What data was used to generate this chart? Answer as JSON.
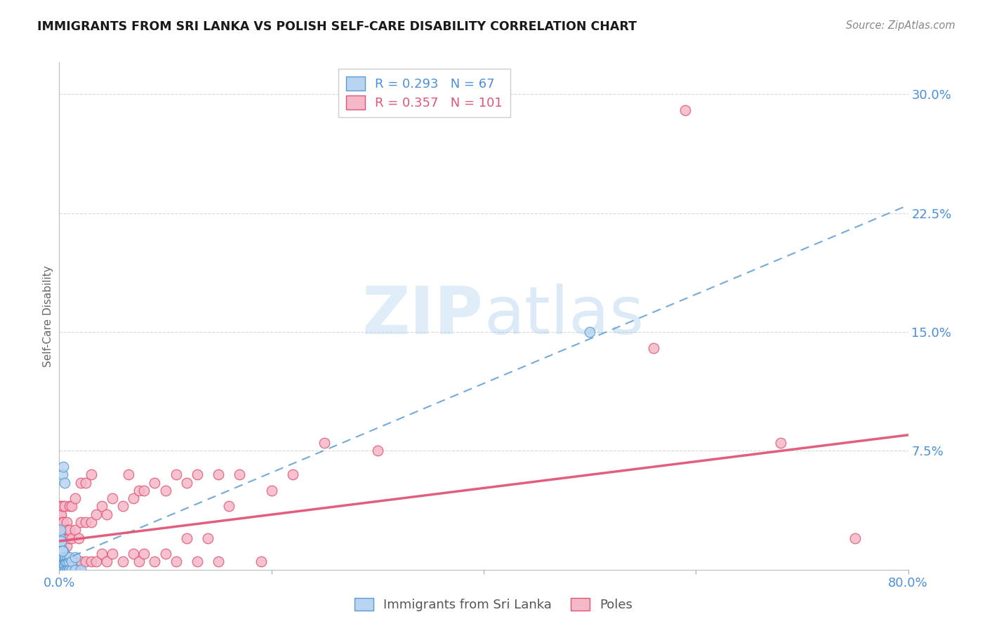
{
  "title": "IMMIGRANTS FROM SRI LANKA VS POLISH SELF-CARE DISABILITY CORRELATION CHART",
  "source": "Source: ZipAtlas.com",
  "ylabel": "Self-Care Disability",
  "xlim": [
    0.0,
    0.8
  ],
  "ylim": [
    0.0,
    0.32
  ],
  "background_color": "#ffffff",
  "grid_color": "#d8d8d8",
  "sri_lanka_color": "#b8d4f0",
  "sri_lanka_edge_color": "#5b9bd5",
  "poles_color": "#f5b8c8",
  "poles_edge_color": "#e05575",
  "R_sri_lanka": 0.293,
  "N_sri_lanka": 67,
  "R_poles": 0.357,
  "N_poles": 101,
  "watermark_zip": "ZIP",
  "watermark_atlas": "atlas",
  "sri_lanka_points": [
    [
      0.0,
      0.0
    ],
    [
      0.0,
      0.002
    ],
    [
      0.0,
      0.004
    ],
    [
      0.0,
      0.005
    ],
    [
      0.0,
      0.007
    ],
    [
      0.0,
      0.01
    ],
    [
      0.0,
      0.012
    ],
    [
      0.0,
      0.0
    ],
    [
      0.001,
      0.0
    ],
    [
      0.001,
      0.003
    ],
    [
      0.001,
      0.005
    ],
    [
      0.001,
      0.007
    ],
    [
      0.001,
      0.01
    ],
    [
      0.001,
      0.012
    ],
    [
      0.001,
      0.015
    ],
    [
      0.001,
      0.018
    ],
    [
      0.001,
      0.0
    ],
    [
      0.001,
      0.005
    ],
    [
      0.001,
      0.008
    ],
    [
      0.001,
      0.01
    ],
    [
      0.002,
      0.0
    ],
    [
      0.002,
      0.003
    ],
    [
      0.002,
      0.005
    ],
    [
      0.002,
      0.008
    ],
    [
      0.002,
      0.01
    ],
    [
      0.002,
      0.0
    ],
    [
      0.002,
      0.005
    ],
    [
      0.002,
      0.003
    ],
    [
      0.002,
      0.012
    ],
    [
      0.003,
      0.0
    ],
    [
      0.003,
      0.005
    ],
    [
      0.003,
      0.008
    ],
    [
      0.003,
      0.0
    ],
    [
      0.003,
      0.003
    ],
    [
      0.004,
      0.0
    ],
    [
      0.004,
      0.005
    ],
    [
      0.004,
      0.008
    ],
    [
      0.004,
      0.012
    ],
    [
      0.004,
      0.0
    ],
    [
      0.005,
      0.005
    ],
    [
      0.005,
      0.0
    ],
    [
      0.005,
      0.008
    ],
    [
      0.005,
      0.003
    ],
    [
      0.006,
      0.0
    ],
    [
      0.006,
      0.005
    ],
    [
      0.006,
      0.008
    ],
    [
      0.007,
      0.0
    ],
    [
      0.007,
      0.005
    ],
    [
      0.008,
      0.0
    ],
    [
      0.008,
      0.008
    ],
    [
      0.009,
      0.0
    ],
    [
      0.009,
      0.005
    ],
    [
      0.01,
      0.0
    ],
    [
      0.01,
      0.008
    ],
    [
      0.012,
      0.0
    ],
    [
      0.012,
      0.005
    ],
    [
      0.015,
      0.0
    ],
    [
      0.015,
      0.008
    ],
    [
      0.02,
      0.0
    ],
    [
      0.003,
      0.06
    ],
    [
      0.004,
      0.065
    ],
    [
      0.005,
      0.055
    ],
    [
      0.5,
      0.15
    ],
    [
      0.001,
      0.02
    ],
    [
      0.002,
      0.018
    ],
    [
      0.003,
      0.012
    ],
    [
      0.001,
      0.025
    ]
  ],
  "poles_points": [
    [
      0.001,
      0.0
    ],
    [
      0.001,
      0.005
    ],
    [
      0.001,
      0.01
    ],
    [
      0.001,
      0.015
    ],
    [
      0.001,
      0.02
    ],
    [
      0.001,
      0.025
    ],
    [
      0.001,
      0.03
    ],
    [
      0.001,
      0.035
    ],
    [
      0.001,
      0.04
    ],
    [
      0.002,
      0.0
    ],
    [
      0.002,
      0.005
    ],
    [
      0.002,
      0.01
    ],
    [
      0.002,
      0.015
    ],
    [
      0.002,
      0.02
    ],
    [
      0.002,
      0.025
    ],
    [
      0.002,
      0.03
    ],
    [
      0.002,
      0.035
    ],
    [
      0.003,
      0.0
    ],
    [
      0.003,
      0.005
    ],
    [
      0.003,
      0.01
    ],
    [
      0.003,
      0.02
    ],
    [
      0.003,
      0.03
    ],
    [
      0.003,
      0.04
    ],
    [
      0.004,
      0.0
    ],
    [
      0.004,
      0.01
    ],
    [
      0.004,
      0.02
    ],
    [
      0.004,
      0.03
    ],
    [
      0.005,
      0.0
    ],
    [
      0.005,
      0.01
    ],
    [
      0.005,
      0.025
    ],
    [
      0.005,
      0.04
    ],
    [
      0.006,
      0.005
    ],
    [
      0.006,
      0.02
    ],
    [
      0.007,
      0.0
    ],
    [
      0.007,
      0.015
    ],
    [
      0.007,
      0.03
    ],
    [
      0.008,
      0.005
    ],
    [
      0.008,
      0.025
    ],
    [
      0.009,
      0.0
    ],
    [
      0.009,
      0.02
    ],
    [
      0.01,
      0.005
    ],
    [
      0.01,
      0.025
    ],
    [
      0.01,
      0.04
    ],
    [
      0.012,
      0.0
    ],
    [
      0.012,
      0.02
    ],
    [
      0.012,
      0.04
    ],
    [
      0.015,
      0.005
    ],
    [
      0.015,
      0.025
    ],
    [
      0.015,
      0.045
    ],
    [
      0.018,
      0.0
    ],
    [
      0.018,
      0.02
    ],
    [
      0.02,
      0.005
    ],
    [
      0.02,
      0.03
    ],
    [
      0.02,
      0.055
    ],
    [
      0.025,
      0.005
    ],
    [
      0.025,
      0.03
    ],
    [
      0.025,
      0.055
    ],
    [
      0.03,
      0.005
    ],
    [
      0.03,
      0.03
    ],
    [
      0.03,
      0.06
    ],
    [
      0.035,
      0.005
    ],
    [
      0.035,
      0.035
    ],
    [
      0.04,
      0.01
    ],
    [
      0.04,
      0.04
    ],
    [
      0.045,
      0.005
    ],
    [
      0.045,
      0.035
    ],
    [
      0.05,
      0.01
    ],
    [
      0.05,
      0.045
    ],
    [
      0.06,
      0.005
    ],
    [
      0.06,
      0.04
    ],
    [
      0.065,
      0.06
    ],
    [
      0.07,
      0.01
    ],
    [
      0.07,
      0.045
    ],
    [
      0.075,
      0.005
    ],
    [
      0.075,
      0.05
    ],
    [
      0.08,
      0.01
    ],
    [
      0.08,
      0.05
    ],
    [
      0.09,
      0.005
    ],
    [
      0.09,
      0.055
    ],
    [
      0.1,
      0.01
    ],
    [
      0.1,
      0.05
    ],
    [
      0.11,
      0.005
    ],
    [
      0.11,
      0.06
    ],
    [
      0.12,
      0.02
    ],
    [
      0.12,
      0.055
    ],
    [
      0.13,
      0.005
    ],
    [
      0.13,
      0.06
    ],
    [
      0.14,
      0.02
    ],
    [
      0.15,
      0.005
    ],
    [
      0.15,
      0.06
    ],
    [
      0.16,
      0.04
    ],
    [
      0.17,
      0.06
    ],
    [
      0.19,
      0.005
    ],
    [
      0.2,
      0.05
    ],
    [
      0.22,
      0.06
    ],
    [
      0.25,
      0.08
    ],
    [
      0.3,
      0.075
    ],
    [
      0.56,
      0.14
    ],
    [
      0.59,
      0.29
    ],
    [
      0.68,
      0.08
    ],
    [
      0.75,
      0.02
    ]
  ],
  "sl_trend_x": [
    0.0,
    0.8
  ],
  "sl_trend_y": [
    0.005,
    0.23
  ],
  "poles_trend_x": [
    0.0,
    0.8
  ],
  "poles_trend_y": [
    0.018,
    0.085
  ]
}
